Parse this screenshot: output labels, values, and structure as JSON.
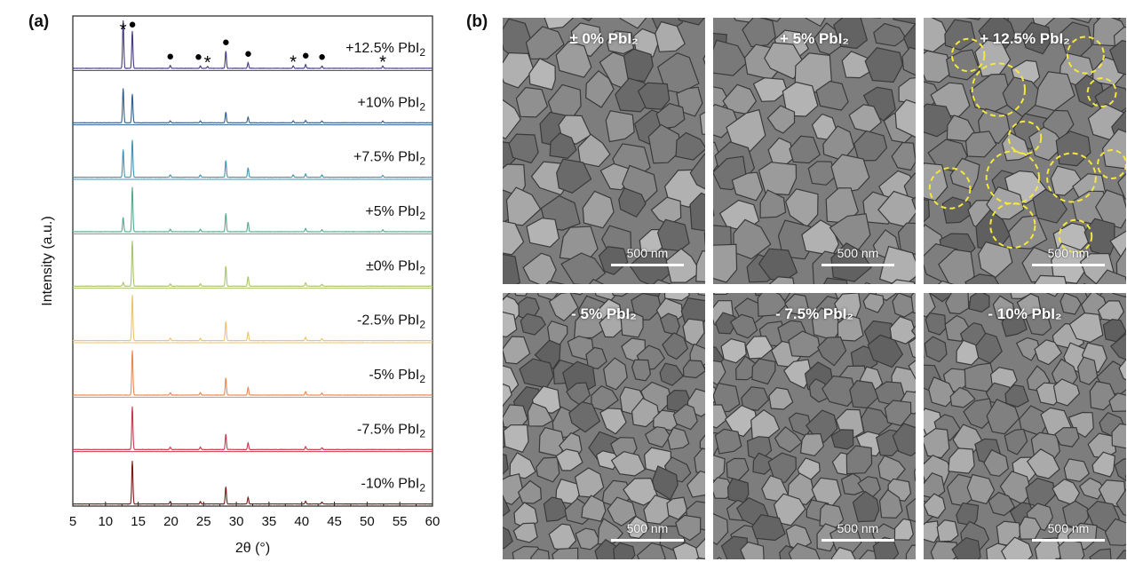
{
  "panel_a_label": "(a)",
  "panel_b_label": "(b)",
  "chart_data": {
    "type": "line",
    "xlabel": "2θ (°)",
    "ylabel": "Intensity (a.u.)",
    "xlim": [
      5,
      60
    ],
    "xticks": [
      5,
      10,
      15,
      20,
      25,
      30,
      35,
      40,
      45,
      50,
      55,
      60
    ],
    "grid": false,
    "legend": "inline-labels-right",
    "series": [
      {
        "name": "+12.5% PbI2",
        "color": "#433a84",
        "peaks": [
          [
            12.7,
            1.0
          ],
          [
            14.1,
            0.78
          ],
          [
            19.9,
            0.06
          ],
          [
            24.5,
            0.05
          ],
          [
            25.6,
            0.04
          ],
          [
            28.4,
            0.36
          ],
          [
            31.8,
            0.12
          ],
          [
            38.7,
            0.05
          ],
          [
            40.6,
            0.08
          ],
          [
            43.1,
            0.05
          ],
          [
            52.4,
            0.05
          ]
        ]
      },
      {
        "name": "+10% PbI2",
        "color": "#2f5f91",
        "peaks": [
          [
            12.7,
            0.72
          ],
          [
            14.1,
            0.6
          ],
          [
            19.9,
            0.04
          ],
          [
            24.5,
            0.04
          ],
          [
            28.4,
            0.22
          ],
          [
            31.8,
            0.12
          ],
          [
            38.7,
            0.04
          ],
          [
            40.6,
            0.05
          ],
          [
            43.1,
            0.04
          ],
          [
            52.4,
            0.04
          ]
        ]
      },
      {
        "name": "+7.5% PbI2",
        "color": "#3f94b5",
        "peaks": [
          [
            12.7,
            0.58
          ],
          [
            14.1,
            0.78
          ],
          [
            19.9,
            0.05
          ],
          [
            24.5,
            0.05
          ],
          [
            28.4,
            0.35
          ],
          [
            31.8,
            0.2
          ],
          [
            38.7,
            0.05
          ],
          [
            40.6,
            0.07
          ],
          [
            43.1,
            0.05
          ],
          [
            52.4,
            0.04
          ]
        ]
      },
      {
        "name": "+5% PbI2",
        "color": "#54aa8f",
        "peaks": [
          [
            12.7,
            0.3
          ],
          [
            14.1,
            0.93
          ],
          [
            19.9,
            0.05
          ],
          [
            24.5,
            0.05
          ],
          [
            28.4,
            0.38
          ],
          [
            31.8,
            0.2
          ],
          [
            40.6,
            0.07
          ],
          [
            43.1,
            0.04
          ],
          [
            52.4,
            0.04
          ]
        ]
      },
      {
        "name": "±0% PbI2",
        "color": "#a7c56a",
        "peaks": [
          [
            12.7,
            0.08
          ],
          [
            14.1,
            0.95
          ],
          [
            19.9,
            0.05
          ],
          [
            24.5,
            0.05
          ],
          [
            28.4,
            0.42
          ],
          [
            31.8,
            0.2
          ],
          [
            40.6,
            0.07
          ],
          [
            43.1,
            0.04
          ]
        ]
      },
      {
        "name": "-2.5% PbI2",
        "color": "#e9c46a",
        "peaks": [
          [
            14.1,
            0.95
          ],
          [
            19.9,
            0.05
          ],
          [
            24.5,
            0.05
          ],
          [
            28.4,
            0.4
          ],
          [
            31.8,
            0.18
          ],
          [
            40.6,
            0.07
          ],
          [
            43.1,
            0.04
          ]
        ]
      },
      {
        "name": "-5% PbI2",
        "color": "#e8874f",
        "peaks": [
          [
            14.1,
            0.93
          ],
          [
            19.9,
            0.05
          ],
          [
            24.5,
            0.05
          ],
          [
            28.4,
            0.36
          ],
          [
            31.8,
            0.16
          ],
          [
            40.6,
            0.07
          ],
          [
            43.1,
            0.04
          ]
        ]
      },
      {
        "name": "-7.5% PbI2",
        "color": "#c9374e",
        "peaks": [
          [
            14.1,
            0.9
          ],
          [
            19.9,
            0.05
          ],
          [
            24.5,
            0.05
          ],
          [
            28.4,
            0.32
          ],
          [
            31.8,
            0.14
          ],
          [
            40.6,
            0.06
          ],
          [
            43.1,
            0.04
          ]
        ]
      },
      {
        "name": "-10% PbI2",
        "color": "#7a1616",
        "peaks": [
          [
            14.1,
            0.9
          ],
          [
            19.9,
            0.05
          ],
          [
            24.5,
            0.05
          ],
          [
            28.4,
            0.36
          ],
          [
            31.8,
            0.14
          ],
          [
            40.6,
            0.06
          ],
          [
            43.1,
            0.04
          ]
        ]
      }
    ],
    "annotations": [
      {
        "symbol": "*",
        "x": 12.7
      },
      {
        "symbol": "●",
        "x": 14.1
      },
      {
        "symbol": "●",
        "x": 19.9
      },
      {
        "symbol": "●",
        "x": 24.2
      },
      {
        "symbol": "*",
        "x": 25.6
      },
      {
        "symbol": "●",
        "x": 28.4
      },
      {
        "symbol": "●",
        "x": 31.8
      },
      {
        "symbol": "*",
        "x": 38.7
      },
      {
        "symbol": "●",
        "x": 40.6
      },
      {
        "symbol": "●",
        "x": 43.1
      },
      {
        "symbol": "*",
        "x": 52.4
      }
    ]
  },
  "sem_panels": [
    {
      "label": "± 0% PbI₂",
      "scale": "500 nm",
      "circles": []
    },
    {
      "label": "+ 5% PbI₂",
      "scale": "500 nm",
      "circles": []
    },
    {
      "label": "+ 12.5% PbI₂",
      "scale": "500 nm",
      "circles": [
        [
          0.22,
          0.14,
          0.08
        ],
        [
          0.8,
          0.14,
          0.09
        ],
        [
          0.37,
          0.27,
          0.13
        ],
        [
          0.88,
          0.28,
          0.07
        ],
        [
          0.5,
          0.45,
          0.08
        ],
        [
          0.44,
          0.6,
          0.13
        ],
        [
          0.73,
          0.6,
          0.12
        ],
        [
          0.93,
          0.55,
          0.07
        ],
        [
          0.13,
          0.64,
          0.1
        ],
        [
          0.44,
          0.78,
          0.11
        ],
        [
          0.75,
          0.82,
          0.08
        ]
      ]
    },
    {
      "label": "- 5% PbI₂",
      "scale": "500 nm",
      "circles": []
    },
    {
      "label": "- 7.5% PbI₂",
      "scale": "500 nm",
      "circles": []
    },
    {
      "label": "- 10% PbI₂",
      "scale": "500 nm",
      "circles": []
    }
  ],
  "colors": {
    "sem_base": "#7d7d7d",
    "circle": "#f5e83a",
    "axis": "#222222"
  }
}
